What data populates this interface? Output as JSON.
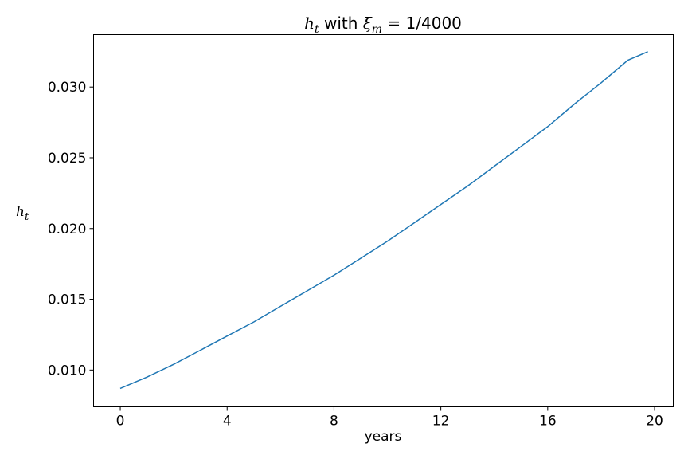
{
  "chart_data": {
    "type": "line",
    "title": {
      "var": "h",
      "var_sub": "t",
      "middle": " with ",
      "xi": "ξ",
      "xi_sub": "m",
      "rhs": " = 1/4000"
    },
    "xlabel": "years",
    "ylabel": {
      "var": "h",
      "sub": "t"
    },
    "xlim": [
      -1,
      20.7
    ],
    "ylim": [
      0.0074,
      0.0337
    ],
    "xticks": [
      0,
      4,
      8,
      12,
      16,
      20
    ],
    "xtick_labels": [
      "0",
      "4",
      "8",
      "12",
      "16",
      "20"
    ],
    "yticks": [
      0.01,
      0.015,
      0.02,
      0.025,
      0.03
    ],
    "ytick_labels": [
      "0.010",
      "0.015",
      "0.020",
      "0.025",
      "0.030"
    ],
    "grid": false,
    "line_color": "#1f77b4",
    "series": [
      {
        "x": [
          0,
          1,
          2,
          3,
          4,
          5,
          6,
          7,
          8,
          9,
          10,
          11,
          12,
          13,
          14,
          15,
          16,
          17,
          18,
          19,
          19.75
        ],
        "values": [
          0.0087,
          0.0095,
          0.0104,
          0.0114,
          0.0124,
          0.0134,
          0.0145,
          0.0156,
          0.0167,
          0.0179,
          0.0191,
          0.0204,
          0.0217,
          0.023,
          0.0244,
          0.0258,
          0.0272,
          0.0288,
          0.0303,
          0.0319,
          0.0325
        ]
      }
    ]
  }
}
